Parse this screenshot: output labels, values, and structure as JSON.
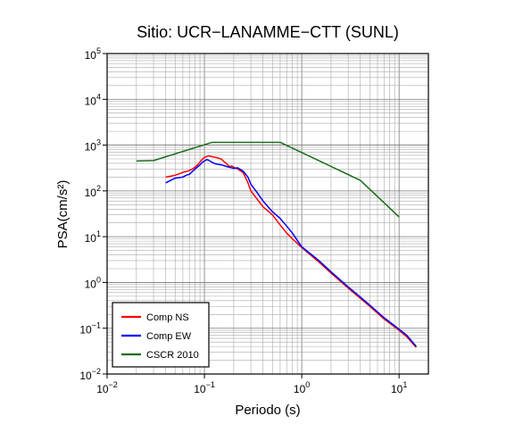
{
  "chart_data": {
    "type": "line",
    "title": "Sitio: UCR−LANAMME−CTT (SUNL)",
    "xlabel": "Periodo (s)",
    "ylabel": "PSA(cm/s²)",
    "x_scale": "log",
    "y_scale": "log",
    "xlim": [
      0.01,
      20
    ],
    "ylim": [
      0.01,
      100000
    ],
    "x_ticks": [
      {
        "value": 0.01,
        "base": "10",
        "exp": "−2"
      },
      {
        "value": 0.1,
        "base": "10",
        "exp": "−1"
      },
      {
        "value": 1,
        "base": "10",
        "exp": "0"
      },
      {
        "value": 10,
        "base": "10",
        "exp": "1"
      }
    ],
    "y_ticks": [
      {
        "value": 0.01,
        "base": "10",
        "exp": "−2"
      },
      {
        "value": 0.1,
        "base": "10",
        "exp": "−1"
      },
      {
        "value": 1,
        "base": "10",
        "exp": "0"
      },
      {
        "value": 10,
        "base": "10",
        "exp": "1"
      },
      {
        "value": 100,
        "base": "10",
        "exp": "2"
      },
      {
        "value": 1000,
        "base": "10",
        "exp": "3"
      },
      {
        "value": 10000,
        "base": "10",
        "exp": "4"
      },
      {
        "value": 100000,
        "base": "10",
        "exp": "5"
      }
    ],
    "grid": true,
    "legend_position": "bottom-left",
    "series": [
      {
        "name": "Comp NS",
        "color": "#ff0000",
        "points": [
          [
            0.04,
            200
          ],
          [
            0.045,
            210
          ],
          [
            0.05,
            220
          ],
          [
            0.055,
            235
          ],
          [
            0.06,
            255
          ],
          [
            0.065,
            265
          ],
          [
            0.07,
            280
          ],
          [
            0.075,
            300
          ],
          [
            0.08,
            330
          ],
          [
            0.085,
            370
          ],
          [
            0.09,
            430
          ],
          [
            0.095,
            490
          ],
          [
            0.1,
            540
          ],
          [
            0.11,
            580
          ],
          [
            0.12,
            560
          ],
          [
            0.13,
            540
          ],
          [
            0.14,
            520
          ],
          [
            0.15,
            490
          ],
          [
            0.16,
            430
          ],
          [
            0.17,
            390
          ],
          [
            0.18,
            340
          ],
          [
            0.19,
            350
          ],
          [
            0.2,
            330
          ],
          [
            0.22,
            300
          ],
          [
            0.25,
            250
          ],
          [
            0.28,
            150
          ],
          [
            0.3,
            100
          ],
          [
            0.35,
            65
          ],
          [
            0.4,
            45
          ],
          [
            0.5,
            30
          ],
          [
            0.6,
            18
          ],
          [
            0.7,
            12
          ],
          [
            0.8,
            9
          ],
          [
            1.0,
            5.8
          ],
          [
            1.5,
            2.8
          ],
          [
            2,
            1.6
          ],
          [
            3,
            0.75
          ],
          [
            4,
            0.45
          ],
          [
            5,
            0.3
          ],
          [
            7,
            0.16
          ],
          [
            10,
            0.09
          ],
          [
            12,
            0.065
          ],
          [
            15,
            0.038
          ]
        ]
      },
      {
        "name": "Comp EW",
        "color": "#0000ff",
        "points": [
          [
            0.04,
            150
          ],
          [
            0.045,
            170
          ],
          [
            0.05,
            190
          ],
          [
            0.055,
            195
          ],
          [
            0.06,
            200
          ],
          [
            0.065,
            220
          ],
          [
            0.07,
            230
          ],
          [
            0.08,
            300
          ],
          [
            0.09,
            370
          ],
          [
            0.095,
            420
          ],
          [
            0.1,
            450
          ],
          [
            0.105,
            480
          ],
          [
            0.11,
            470
          ],
          [
            0.12,
            420
          ],
          [
            0.13,
            390
          ],
          [
            0.15,
            370
          ],
          [
            0.17,
            340
          ],
          [
            0.19,
            320
          ],
          [
            0.2,
            310
          ],
          [
            0.22,
            320
          ],
          [
            0.25,
            270
          ],
          [
            0.28,
            200
          ],
          [
            0.3,
            140
          ],
          [
            0.35,
            90
          ],
          [
            0.4,
            60
          ],
          [
            0.5,
            35
          ],
          [
            0.6,
            25
          ],
          [
            0.7,
            17
          ],
          [
            0.8,
            12
          ],
          [
            1.0,
            6.0
          ],
          [
            1.5,
            3.0
          ],
          [
            2,
            1.7
          ],
          [
            3,
            0.8
          ],
          [
            4,
            0.48
          ],
          [
            5,
            0.32
          ],
          [
            7,
            0.17
          ],
          [
            10,
            0.095
          ],
          [
            12,
            0.07
          ],
          [
            15,
            0.04
          ]
        ]
      },
      {
        "name": "CSCR 2010",
        "color": "#1a6b1a",
        "points": [
          [
            0.02,
            450
          ],
          [
            0.03,
            460
          ],
          [
            0.12,
            1150
          ],
          [
            0.6,
            1150
          ],
          [
            4,
            170
          ],
          [
            10,
            27
          ]
        ]
      }
    ]
  }
}
